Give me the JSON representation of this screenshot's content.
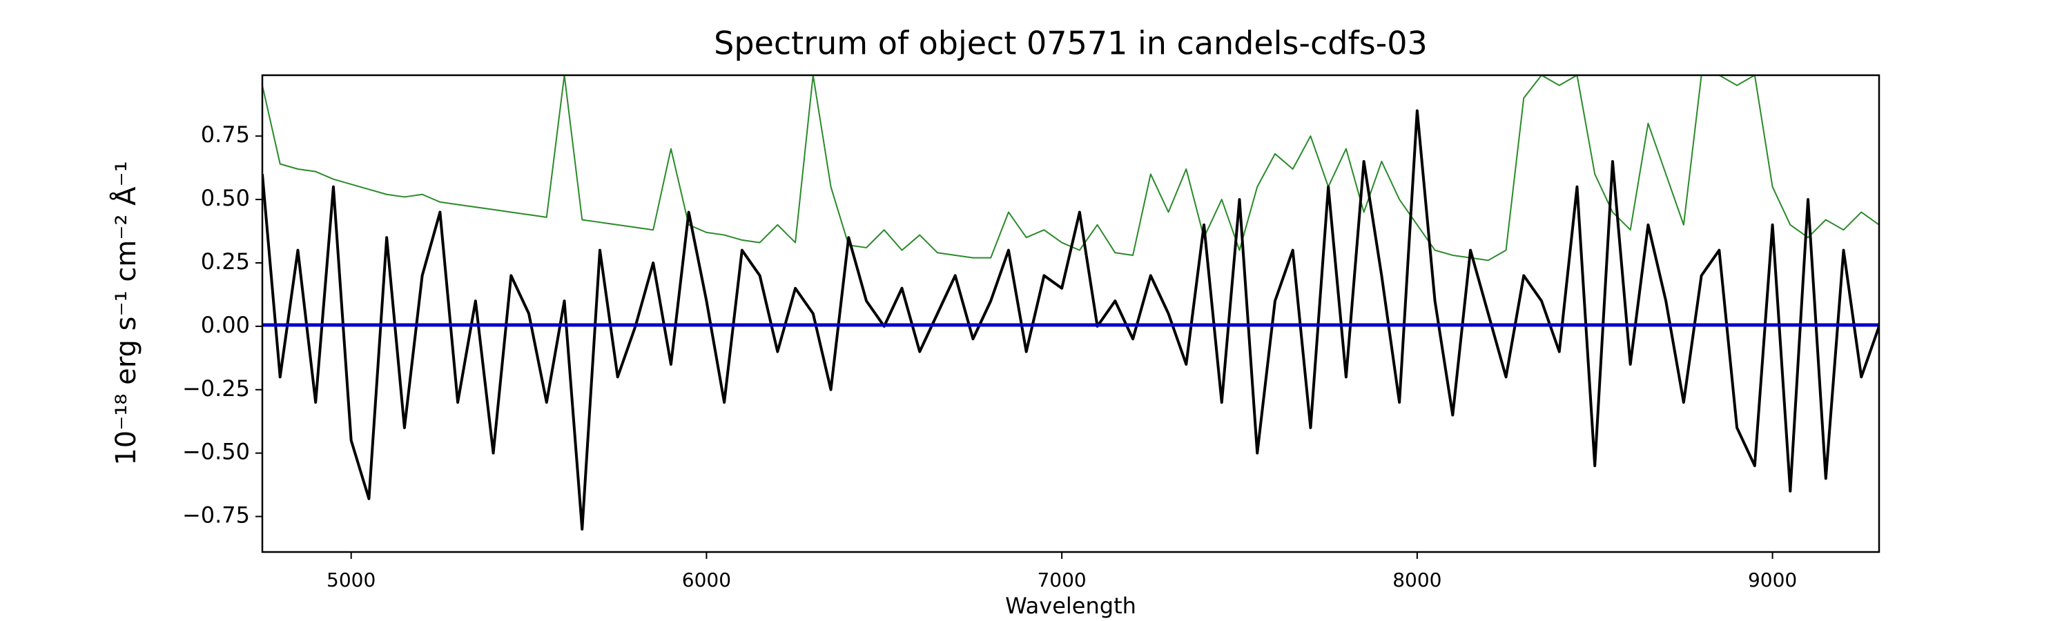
{
  "chart_data": {
    "type": "line",
    "title": "Spectrum of object 07571 in candels-cdfs-03",
    "xlabel": "Wavelength",
    "ylabel": "10⁻¹⁸ erg s⁻¹ cm⁻² Å⁻¹",
    "xlim": [
      4750,
      9300
    ],
    "ylim": [
      -0.89,
      0.99
    ],
    "xticks": [
      5000,
      6000,
      7000,
      8000,
      9000
    ],
    "yticks": [
      {
        "value": -0.75,
        "label": "−0.75"
      },
      {
        "value": -0.5,
        "label": "−0.50"
      },
      {
        "value": -0.25,
        "label": "−0.25"
      },
      {
        "value": 0,
        "label": "0.00"
      },
      {
        "value": 0.25,
        "label": "0.25"
      },
      {
        "value": 0.5,
        "label": "0.50"
      },
      {
        "value": 0.75,
        "label": "0.75"
      }
    ],
    "x": [
      4750,
      4800,
      4850,
      4900,
      4950,
      5000,
      5050,
      5100,
      5150,
      5200,
      5250,
      5300,
      5350,
      5400,
      5450,
      5500,
      5550,
      5600,
      5650,
      5700,
      5750,
      5800,
      5850,
      5900,
      5950,
      6000,
      6050,
      6100,
      6150,
      6200,
      6250,
      6300,
      6350,
      6400,
      6450,
      6500,
      6550,
      6600,
      6650,
      6700,
      6750,
      6800,
      6850,
      6900,
      6950,
      7000,
      7050,
      7100,
      7150,
      7200,
      7250,
      7300,
      7350,
      7400,
      7450,
      7500,
      7550,
      7600,
      7650,
      7700,
      7750,
      7800,
      7850,
      7900,
      7950,
      8000,
      8050,
      8100,
      8150,
      8200,
      8250,
      8300,
      8350,
      8400,
      8450,
      8500,
      8550,
      8600,
      8650,
      8700,
      8750,
      8800,
      8850,
      8900,
      8950,
      9000,
      9050,
      9100,
      9150,
      9200,
      9250,
      9300
    ],
    "series": [
      {
        "color": "#2a8a2a",
        "width": 2,
        "values": [
          0.95,
          0.64,
          0.62,
          0.61,
          0.58,
          0.56,
          0.54,
          0.52,
          0.51,
          0.52,
          0.49,
          0.48,
          0.47,
          0.46,
          0.45,
          0.44,
          0.43,
          0.99,
          0.42,
          0.41,
          0.4,
          0.39,
          0.38,
          0.7,
          0.4,
          0.37,
          0.36,
          0.34,
          0.33,
          0.4,
          0.33,
          0.99,
          0.55,
          0.32,
          0.31,
          0.38,
          0.3,
          0.36,
          0.29,
          0.28,
          0.27,
          0.27,
          0.45,
          0.35,
          0.38,
          0.33,
          0.3,
          0.4,
          0.29,
          0.28,
          0.6,
          0.45,
          0.62,
          0.35,
          0.5,
          0.3,
          0.55,
          0.68,
          0.62,
          0.75,
          0.55,
          0.7,
          0.45,
          0.65,
          0.5,
          0.4,
          0.3,
          0.28,
          0.27,
          0.26,
          0.3,
          0.9,
          0.99,
          0.95,
          0.99,
          0.6,
          0.45,
          0.38,
          0.8,
          0.6,
          0.4,
          0.99,
          0.99,
          0.95,
          0.99,
          0.55,
          0.4,
          0.35,
          0.42,
          0.38,
          0.45,
          0.4
        ]
      },
      {
        "color": "#000000",
        "width": 4,
        "values": [
          0.6,
          -0.2,
          0.3,
          -0.3,
          0.55,
          -0.45,
          -0.68,
          0.35,
          -0.4,
          0.2,
          0.45,
          -0.3,
          0.1,
          -0.5,
          0.2,
          0.05,
          -0.3,
          0.1,
          -0.8,
          0.3,
          -0.2,
          0.0,
          0.25,
          -0.15,
          0.45,
          0.1,
          -0.3,
          0.3,
          0.2,
          -0.1,
          0.15,
          0.05,
          -0.25,
          0.35,
          0.1,
          0.0,
          0.15,
          -0.1,
          0.05,
          0.2,
          -0.05,
          0.1,
          0.3,
          -0.1,
          0.2,
          0.15,
          0.45,
          0.0,
          0.1,
          -0.05,
          0.2,
          0.05,
          -0.15,
          0.4,
          -0.3,
          0.5,
          -0.5,
          0.1,
          0.3,
          -0.4,
          0.55,
          -0.2,
          0.65,
          0.2,
          -0.3,
          0.85,
          0.1,
          -0.35,
          0.3,
          0.05,
          -0.2,
          0.2,
          0.1,
          -0.1,
          0.55,
          -0.55,
          0.65,
          -0.15,
          0.4,
          0.1,
          -0.3,
          0.2,
          0.3,
          -0.4,
          -0.55,
          0.4,
          -0.65,
          0.5,
          -0.6,
          0.3,
          -0.2,
          0.0
        ]
      },
      {
        "color": "#0000cc",
        "width": 5,
        "values": [
          0.005,
          0.005,
          0.005,
          0.005,
          0.005,
          0.005,
          0.005,
          0.005,
          0.005,
          0.005,
          0.005,
          0.005,
          0.005,
          0.005,
          0.005,
          0.005,
          0.005,
          0.005,
          0.005,
          0.005,
          0.005,
          0.005,
          0.005,
          0.005,
          0.005,
          0.005,
          0.005,
          0.005,
          0.005,
          0.005,
          0.005,
          0.005,
          0.005,
          0.005,
          0.005,
          0.005,
          0.005,
          0.005,
          0.005,
          0.005,
          0.005,
          0.005,
          0.005,
          0.005,
          0.005,
          0.005,
          0.005,
          0.005,
          0.005,
          0.005,
          0.005,
          0.005,
          0.005,
          0.005,
          0.005,
          0.005,
          0.005,
          0.005,
          0.005,
          0.005,
          0.005,
          0.005,
          0.005,
          0.005,
          0.005,
          0.005,
          0.005,
          0.005,
          0.005,
          0.005,
          0.005,
          0.005,
          0.005,
          0.005,
          0.005,
          0.005,
          0.005,
          0.005,
          0.005,
          0.005,
          0.005,
          0.005,
          0.005,
          0.005,
          0.005,
          0.005,
          0.005,
          0.005,
          0.005,
          0.005,
          0.005,
          0.005
        ]
      }
    ]
  }
}
